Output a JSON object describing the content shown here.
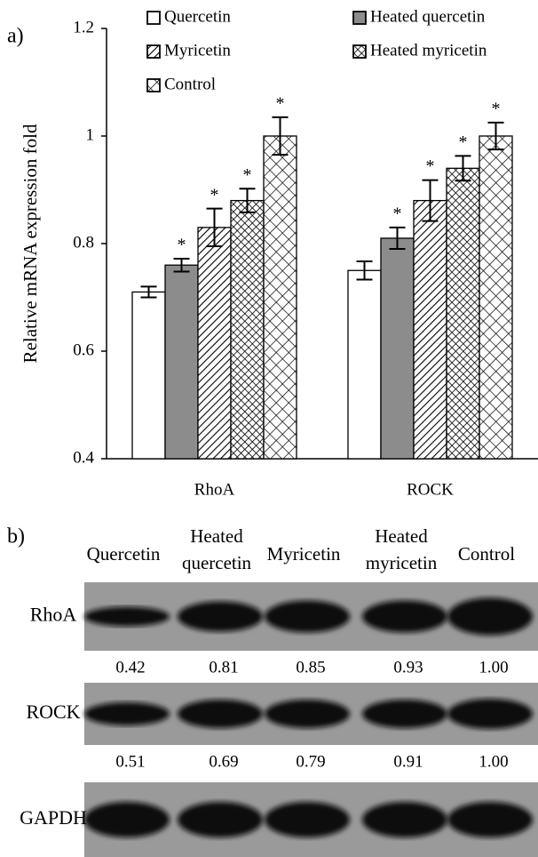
{
  "panel_labels": [
    "a)",
    "b)"
  ],
  "chart_data": {
    "type": "bar",
    "y_label": "Relative mRNA expression fold",
    "categories": [
      "RhoA",
      "ROCK"
    ],
    "ylim": [
      0.4,
      1.2
    ],
    "yticks": [
      0.4,
      0.6,
      0.8,
      1,
      1.2
    ],
    "series": [
      {
        "name": "Quercetin",
        "color": "#ffffff",
        "pattern": "solid",
        "values": [
          0.71,
          0.75
        ],
        "errors": [
          0.01,
          0.017
        ]
      },
      {
        "name": "Heated quercetin",
        "color": "#8c8c8c",
        "pattern": "solid",
        "values": [
          0.76,
          0.81
        ],
        "errors": [
          0.012,
          0.02
        ],
        "significance": [
          "*",
          "*"
        ]
      },
      {
        "name": "Myricetin",
        "color": "#ffffff",
        "pattern": "hatch",
        "values": [
          0.83,
          0.88
        ],
        "errors": [
          0.035,
          0.038
        ],
        "significance": [
          "*",
          "*"
        ]
      },
      {
        "name": "Heated myricetin",
        "color": "#ffffff",
        "pattern": "crosshatch",
        "values": [
          0.88,
          0.94
        ],
        "errors": [
          0.022,
          0.023
        ],
        "significance": [
          "*",
          "*"
        ]
      },
      {
        "name": "Control",
        "color": "#ffffff",
        "pattern": "checker",
        "values": [
          1.0,
          1.0
        ],
        "errors": [
          0.035,
          0.025
        ],
        "significance": [
          "*",
          "*"
        ]
      }
    ]
  },
  "blot": {
    "lanes": [
      [
        "Quercetin"
      ],
      [
        "Heated",
        "quercetin"
      ],
      [
        "Myricetin"
      ],
      [
        "Heated",
        "myricetin"
      ],
      [
        "Control"
      ]
    ],
    "rows": [
      {
        "name": "RhoA",
        "values": [
          "0.42",
          "0.81",
          "0.85",
          "0.93",
          "1.00"
        ]
      },
      {
        "name": "ROCK",
        "values": [
          "0.51",
          "0.69",
          "0.79",
          "0.91",
          "1.00"
        ]
      },
      {
        "name": "GAPDH"
      }
    ]
  }
}
